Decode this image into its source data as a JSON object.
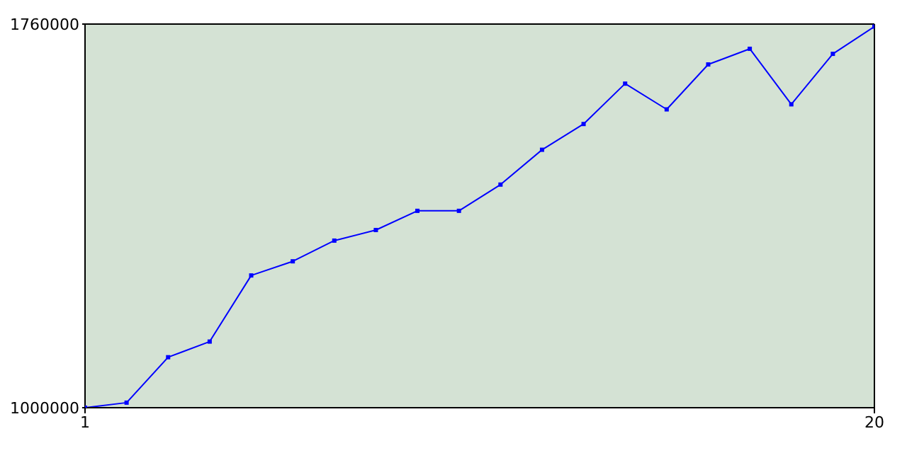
{
  "chart_data": {
    "type": "line",
    "x": [
      1,
      2,
      3,
      4,
      5,
      6,
      7,
      8,
      9,
      10,
      11,
      12,
      13,
      14,
      15,
      16,
      17,
      18,
      19,
      20
    ],
    "series": [
      {
        "color": "#0000ff",
        "values": [
          1000000,
          1010000,
          1100000,
          1131000,
          1262000,
          1290000,
          1331000,
          1352000,
          1390000,
          1390000,
          1442000,
          1511000,
          1562000,
          1642000,
          1591000,
          1680000,
          1711000,
          1601000,
          1701000,
          1755000
        ]
      }
    ],
    "xlim": [
      1,
      20
    ],
    "xticks": [
      1,
      20
    ],
    "ylim": [
      1000000,
      1760000
    ],
    "yticks": [
      1000000,
      1760000
    ],
    "marker": "square",
    "line_style": "solid",
    "grid": false,
    "legend": false
  }
}
